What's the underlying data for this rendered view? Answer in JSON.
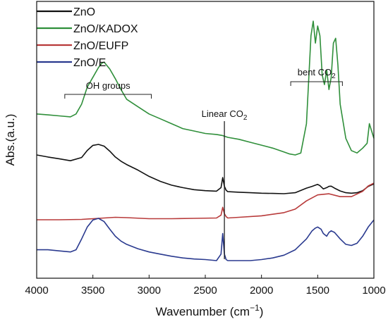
{
  "chart_data": {
    "type": "line",
    "title": "",
    "xlabel": "Wavenumber (cm⁻¹)",
    "xlabel_parts": {
      "main": "Wavenumber (cm",
      "sup": "−1",
      "close": ")"
    },
    "ylabel": "Abs.(a.u.)",
    "xlim": [
      4000,
      1000
    ],
    "x_reversed": true,
    "ylim": [
      0,
      1
    ],
    "x_ticks": [
      4000,
      3500,
      3000,
      2500,
      2000,
      1500,
      1000
    ],
    "y_ticks_shown": false,
    "grid": false,
    "legend_position": "top-left",
    "series": [
      {
        "name": "ZnO",
        "color": "#111111",
        "x": [
          4000,
          3900,
          3800,
          3700,
          3600,
          3550,
          3500,
          3450,
          3400,
          3350,
          3300,
          3250,
          3200,
          3100,
          3000,
          2900,
          2800,
          2700,
          2600,
          2500,
          2400,
          2360,
          2345,
          2330,
          2315,
          2300,
          2200,
          2100,
          2000,
          1900,
          1800,
          1700,
          1600,
          1550,
          1520,
          1500,
          1480,
          1450,
          1420,
          1400,
          1380,
          1350,
          1300,
          1250,
          1200,
          1150,
          1100,
          1050,
          1000
        ],
        "y": [
          0.63,
          0.622,
          0.615,
          0.607,
          0.62,
          0.648,
          0.668,
          0.672,
          0.665,
          0.645,
          0.622,
          0.605,
          0.592,
          0.57,
          0.545,
          0.525,
          0.51,
          0.5,
          0.492,
          0.488,
          0.486,
          0.5,
          0.54,
          0.505,
          0.49,
          0.484,
          0.482,
          0.48,
          0.478,
          0.477,
          0.476,
          0.48,
          0.498,
          0.505,
          0.51,
          0.513,
          0.508,
          0.495,
          0.5,
          0.505,
          0.506,
          0.498,
          0.487,
          0.48,
          0.478,
          0.48,
          0.488,
          0.505,
          0.515
        ]
      },
      {
        "name": "ZnO/KADOX",
        "color": "#2f8f3a",
        "x": [
          4000,
          3900,
          3800,
          3700,
          3650,
          3600,
          3550,
          3500,
          3450,
          3420,
          3400,
          3350,
          3300,
          3250,
          3200,
          3100,
          3000,
          2900,
          2800,
          2700,
          2600,
          2500,
          2400,
          2350,
          2300,
          2200,
          2100,
          2000,
          1900,
          1800,
          1750,
          1700,
          1650,
          1600,
          1580,
          1560,
          1540,
          1520,
          1500,
          1480,
          1460,
          1440,
          1420,
          1400,
          1380,
          1360,
          1340,
          1320,
          1300,
          1250,
          1200,
          1150,
          1100,
          1060,
          1040,
          1020,
          1000
        ],
        "y": [
          0.78,
          0.778,
          0.776,
          0.774,
          0.78,
          0.8,
          0.835,
          0.855,
          0.875,
          0.884,
          0.886,
          0.872,
          0.852,
          0.83,
          0.81,
          0.795,
          0.78,
          0.77,
          0.76,
          0.75,
          0.745,
          0.74,
          0.738,
          0.736,
          0.732,
          0.728,
          0.722,
          0.716,
          0.71,
          0.702,
          0.698,
          0.696,
          0.7,
          0.76,
          0.85,
          0.94,
          0.97,
          0.925,
          0.96,
          0.94,
          0.86,
          0.84,
          0.87,
          0.83,
          0.855,
          0.925,
          0.935,
          0.88,
          0.8,
          0.73,
          0.705,
          0.7,
          0.71,
          0.72,
          0.76,
          0.745,
          0.73
        ]
      },
      {
        "name": "ZnO/EUFP",
        "color": "#b83a3a",
        "x": [
          4000,
          3800,
          3600,
          3500,
          3400,
          3300,
          3200,
          3000,
          2800,
          2600,
          2400,
          2360,
          2345,
          2330,
          2315,
          2300,
          2200,
          2000,
          1800,
          1700,
          1600,
          1500,
          1400,
          1300,
          1200,
          1100,
          1050,
          1000
        ],
        "y": [
          0.215,
          0.215,
          0.216,
          0.218,
          0.22,
          0.222,
          0.221,
          0.218,
          0.218,
          0.219,
          0.22,
          0.228,
          0.25,
          0.232,
          0.224,
          0.22,
          0.222,
          0.226,
          0.235,
          0.245,
          0.268,
          0.285,
          0.288,
          0.28,
          0.28,
          0.295,
          0.31,
          0.318
        ]
      },
      {
        "name": "ZnO/E",
        "color": "#2a3a8f",
        "x": [
          4000,
          3900,
          3800,
          3700,
          3650,
          3600,
          3550,
          3500,
          3450,
          3400,
          3350,
          3300,
          3250,
          3200,
          3100,
          3000,
          2900,
          2800,
          2700,
          2600,
          2500,
          2400,
          2360,
          2345,
          2330,
          2315,
          2300,
          2200,
          2100,
          2000,
          1900,
          1800,
          1700,
          1600,
          1550,
          1520,
          1500,
          1470,
          1450,
          1420,
          1400,
          1380,
          1350,
          1300,
          1250,
          1200,
          1150,
          1100,
          1050,
          1000
        ],
        "y": [
          0.02,
          0.02,
          0.018,
          0.016,
          0.02,
          0.04,
          0.062,
          0.075,
          0.078,
          0.072,
          0.058,
          0.045,
          0.036,
          0.03,
          0.022,
          0.016,
          0.012,
          0.008,
          0.005,
          0.003,
          0.002,
          0.0,
          0.012,
          0.05,
          0.012,
          0.002,
          0.0,
          0.0,
          0.0,
          0.002,
          0.005,
          0.01,
          0.02,
          0.04,
          0.055,
          0.06,
          0.062,
          0.058,
          0.05,
          0.045,
          0.052,
          0.055,
          0.052,
          0.04,
          0.03,
          0.028,
          0.032,
          0.045,
          0.062,
          0.075
        ]
      }
    ],
    "annotations": {
      "oh_groups": {
        "label": "OH groups",
        "x_from": 3750,
        "x_to": 2980
      },
      "linear_co2": {
        "label_main": "Linear CO",
        "label_sub": "2",
        "x": 2330
      },
      "bent_co2": {
        "label_main": "bent CO",
        "label_sub": "2",
        "x_from": 1740,
        "x_to": 1280
      }
    }
  }
}
